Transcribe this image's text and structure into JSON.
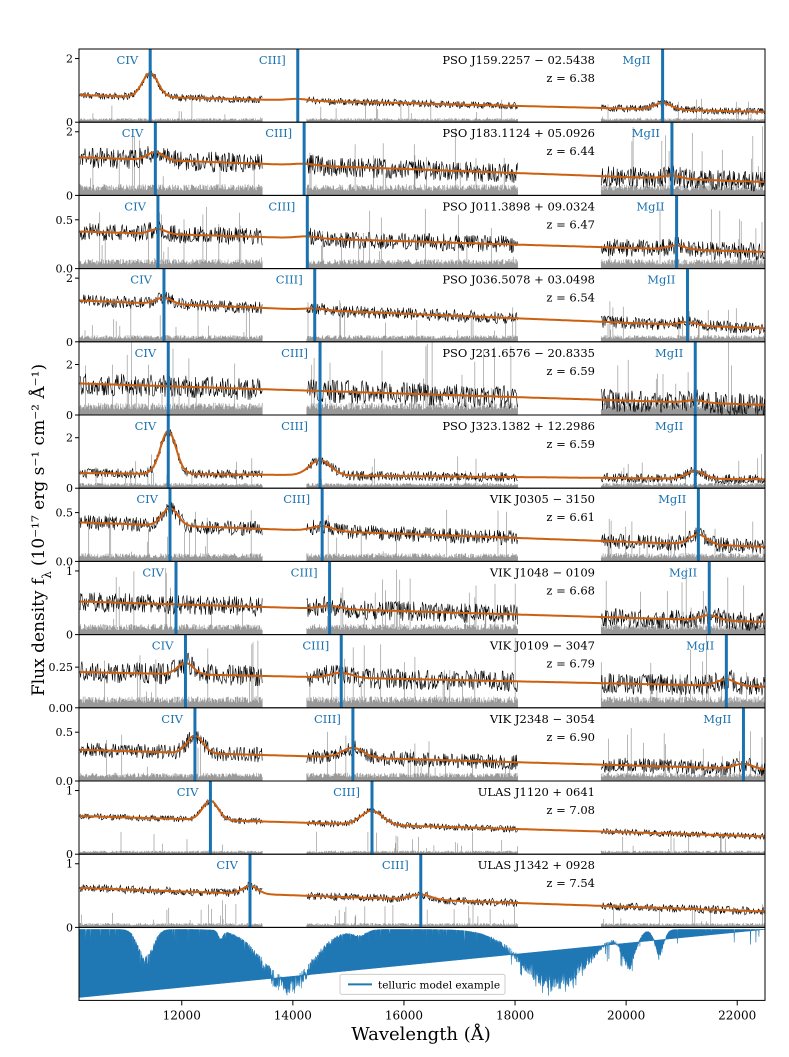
{
  "chart_data": {
    "type": "line",
    "xlabel": "Wavelength (Å)",
    "ylabel": "Flux density f",
    "ylabel_sub": "λ",
    "ylabel_units": "(10⁻¹⁷ erg s⁻¹ cm⁻² Å⁻¹)",
    "xlim": [
      10150,
      22500
    ],
    "xticks": [
      12000,
      14000,
      16000,
      18000,
      20000,
      22000
    ],
    "xtick_labels": [
      "12000",
      "14000",
      "16000",
      "18000",
      "20000",
      "22000"
    ],
    "line_labels": [
      "CIV",
      "CIII]",
      "MgII"
    ],
    "rest_wavelengths": [
      1549,
      1909,
      2799
    ],
    "spectrum_gaps": [
      [
        13450,
        14250
      ],
      [
        18050,
        19550
      ]
    ],
    "colors": {
      "spectrum": "#000000",
      "error": "#999999",
      "model": "#cc5f10",
      "line_marker": "#1a72b0",
      "telluric": "#1f77b4"
    },
    "legend": {
      "label": "telluric model example",
      "loc": "bottom-center"
    },
    "panels": [
      {
        "name": "PSO J159.2257 − 02.5438",
        "z_label": "z = 6.38",
        "z": 6.38,
        "ylim": [
          0,
          2.3
        ],
        "yticks": [
          0,
          2
        ],
        "ytick_labels": [
          "0",
          "2"
        ],
        "continuum": [
          0.85,
          0.32
        ],
        "civ_amp": 0.75,
        "ciii_amp": 0.05,
        "mgii_amp": 0.2,
        "noise": 0.09
      },
      {
        "name": "PSO J183.1124 + 05.0926",
        "z_label": "z = 6.44",
        "z": 6.44,
        "ylim": [
          0,
          2.3
        ],
        "yticks": [
          0,
          2
        ],
        "ytick_labels": [
          "0",
          "2"
        ],
        "continuum": [
          1.2,
          0.42
        ],
        "civ_amp": 0.25,
        "ciii_amp": 0.05,
        "mgii_amp": 0.1,
        "noise": 0.25
      },
      {
        "name": "PSO J011.3898 + 09.0324",
        "z_label": "z = 6.47",
        "z": 6.47,
        "ylim": [
          0,
          0.75
        ],
        "yticks": [
          0,
          0.5
        ],
        "ytick_labels": [
          "0.0",
          "0.5"
        ],
        "continuum": [
          0.38,
          0.17
        ],
        "civ_amp": 0.05,
        "ciii_amp": 0.02,
        "mgii_amp": 0.04,
        "noise": 0.07
      },
      {
        "name": "PSO J036.5078 + 03.0498",
        "z_label": "z = 6.54",
        "z": 6.54,
        "ylim": [
          0,
          2.3
        ],
        "yticks": [
          0,
          2
        ],
        "ytick_labels": [
          "0",
          "2"
        ],
        "continuum": [
          1.3,
          0.42
        ],
        "civ_amp": 0.2,
        "ciii_amp": 0.05,
        "mgii_amp": 0.1,
        "noise": 0.15
      },
      {
        "name": "PSO J231.6576 − 20.8335",
        "z_label": "z = 6.59",
        "z": 6.59,
        "ylim": [
          0,
          2.9
        ],
        "yticks": [
          0,
          2
        ],
        "ytick_labels": [
          "0",
          "2"
        ],
        "continuum": [
          1.25,
          0.4
        ],
        "civ_amp": 0.0,
        "ciii_amp": 0.0,
        "mgii_amp": 0.1,
        "noise": 0.35
      },
      {
        "name": "PSO J323.1382 + 12.2986",
        "z_label": "z = 6.59",
        "z": 6.59,
        "ylim": [
          0,
          2.9
        ],
        "yticks": [
          0,
          2
        ],
        "ytick_labels": [
          "0",
          "2"
        ],
        "continuum": [
          0.6,
          0.35
        ],
        "civ_amp": 1.7,
        "ciii_amp": 0.6,
        "mgii_amp": 0.3,
        "noise": 0.15
      },
      {
        "name": "VIK J0305 − 3150",
        "z_label": "z = 6.61",
        "z": 6.61,
        "ylim": [
          0,
          0.75
        ],
        "yticks": [
          0,
          0.5
        ],
        "ytick_labels": [
          "0.0",
          "0.5"
        ],
        "continuum": [
          0.4,
          0.15
        ],
        "civ_amp": 0.18,
        "ciii_amp": 0.05,
        "mgii_amp": 0.1,
        "noise": 0.06
      },
      {
        "name": "VIK J1048 − 0109",
        "z_label": "z = 6.68",
        "z": 6.68,
        "ylim": [
          0,
          1.15
        ],
        "yticks": [
          0,
          1
        ],
        "ytick_labels": [
          "0",
          "1"
        ],
        "continuum": [
          0.52,
          0.2
        ],
        "civ_amp": 0.0,
        "ciii_amp": 0.05,
        "mgii_amp": 0.08,
        "noise": 0.12
      },
      {
        "name": "VIK J0109 − 3047",
        "z_label": "z = 6.79",
        "z": 6.79,
        "ylim": [
          0,
          0.45
        ],
        "yticks": [
          0,
          0.25
        ],
        "ytick_labels": [
          "0.00",
          "0.25"
        ],
        "continuum": [
          0.22,
          0.13
        ],
        "civ_amp": 0.07,
        "ciii_amp": 0.03,
        "mgii_amp": 0.04,
        "noise": 0.05
      },
      {
        "name": "VIK J2348 − 3054",
        "z_label": "z = 6.90",
        "z": 6.9,
        "ylim": [
          0,
          0.75
        ],
        "yticks": [
          0,
          0.5
        ],
        "ytick_labels": [
          "0.0",
          "0.5"
        ],
        "continuum": [
          0.32,
          0.12
        ],
        "civ_amp": 0.18,
        "ciii_amp": 0.1,
        "mgii_amp": 0.05,
        "noise": 0.06
      },
      {
        "name": "ULAS J1120 + 0641",
        "z_label": "z = 7.08",
        "z": 7.08,
        "ylim": [
          0,
          1.15
        ],
        "yticks": [
          0,
          1
        ],
        "ytick_labels": [
          "0",
          "1"
        ],
        "continuum": [
          0.6,
          0.28
        ],
        "civ_amp": 0.3,
        "ciii_amp": 0.22,
        "mgii_amp": 0.0,
        "noise": 0.04
      },
      {
        "name": "ULAS J1342 + 0928",
        "z_label": "z = 7.54",
        "z": 7.54,
        "ylim": [
          0,
          1.15
        ],
        "yticks": [
          0,
          1
        ],
        "ytick_labels": [
          "0",
          "1"
        ],
        "continuum": [
          0.62,
          0.25
        ],
        "civ_amp": 0.12,
        "ciii_amp": 0.08,
        "mgii_amp": 0.0,
        "noise": 0.05
      }
    ],
    "telluric_panel": {
      "ylim": [
        0,
        1.05
      ],
      "absorption_bands": [
        [
          11350,
          0.55,
          130
        ],
        [
          12700,
          0.15,
          40
        ],
        [
          13900,
          0.98,
          450
        ],
        [
          15200,
          0.1,
          120
        ],
        [
          18700,
          0.9,
          600
        ],
        [
          20050,
          0.55,
          120
        ],
        [
          20600,
          0.4,
          80
        ]
      ]
    }
  }
}
